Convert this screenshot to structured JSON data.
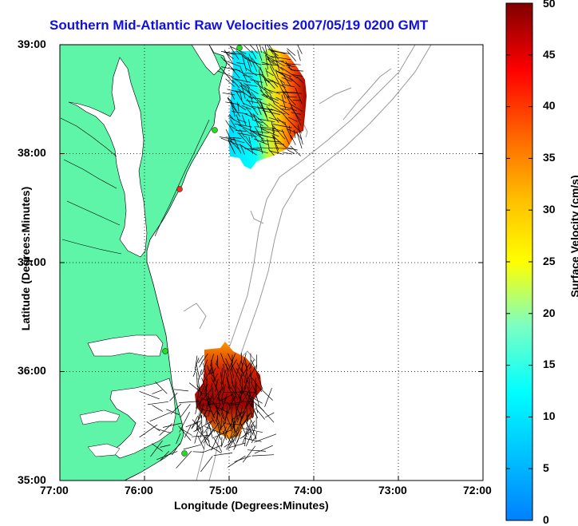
{
  "title": "Southern Mid-Atlantic Raw Velocities 2007/05/19 0200 GMT",
  "x_axis": {
    "label": "Longitude (Degrees:Minutes)",
    "ticks": [
      "77:00",
      "76:00",
      "75:00",
      "74:00",
      "73:00",
      "72:00"
    ]
  },
  "y_axis": {
    "label": "Latitude (Degrees:Minutes)",
    "ticks": [
      "39:00",
      "38:00",
      "37:00",
      "36:00",
      "35:00"
    ]
  },
  "colorbar": {
    "label": "Surface Velocity (cm/s)",
    "ticks": [
      "0",
      "5",
      "10",
      "15",
      "20",
      "25",
      "30",
      "35",
      "40",
      "45",
      "50"
    ],
    "range": [
      0,
      50
    ],
    "colormap": "jet"
  },
  "colors": {
    "land": "#5ff5a8",
    "water": "#ffffff",
    "title": "#1010e0",
    "bathymetry": "#9a9a9a",
    "station": "#22dd22",
    "station_alt": "#ee3322"
  },
  "map_extent": {
    "lon": [
      -77.0,
      -72.0
    ],
    "lat": [
      35.0,
      39.0
    ]
  },
  "grid": "dotted",
  "regions": [
    {
      "name": "northern velocity field",
      "lon_range": [
        -75.0,
        -74.1
      ],
      "lat_range": [
        37.9,
        38.9
      ],
      "speed_range_cm_s": [
        5,
        50
      ]
    },
    {
      "name": "southern velocity field",
      "lon_range": [
        -75.3,
        -74.4
      ],
      "lat_range": [
        35.4,
        36.2
      ],
      "speed_range_cm_s": [
        25,
        50
      ]
    }
  ],
  "stations": [
    {
      "lon": -74.88,
      "lat": 38.97,
      "color": "green"
    },
    {
      "lon": -75.16,
      "lat": 38.22,
      "color": "green"
    },
    {
      "lon": -75.58,
      "lat": 37.7,
      "color": "red"
    },
    {
      "lon": -75.75,
      "lat": 36.2,
      "color": "green"
    },
    {
      "lon": -75.52,
      "lat": 35.26,
      "color": "green"
    }
  ]
}
